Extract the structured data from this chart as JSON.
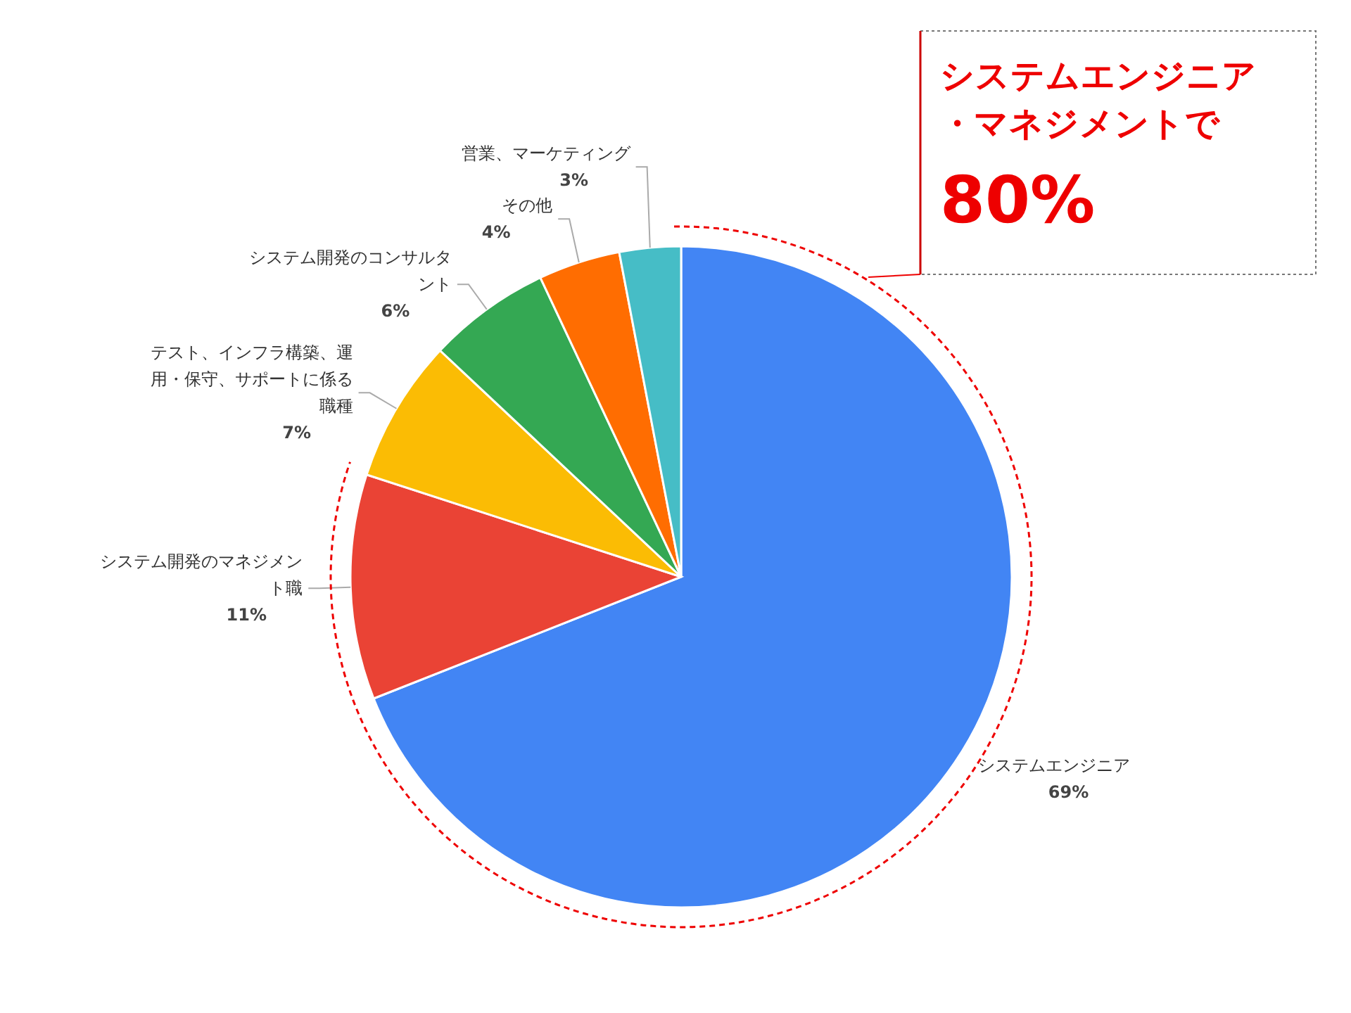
{
  "chart_data": {
    "type": "pie",
    "categories": [
      "システムエンジニア",
      "システム開発のマネジメント職",
      "テスト、インフラ構築、運用・保守、サポートに係る職種",
      "システム開発のコンサルタント",
      "その他",
      "営業、マーケティング"
    ],
    "values": [
      69,
      11,
      7,
      6,
      4,
      3
    ],
    "value_labels": [
      "69%",
      "11%",
      "7%",
      "6%",
      "4%",
      "3%"
    ],
    "colors": [
      "#4285f4",
      "#ea4335",
      "#fbbc04",
      "#34a853",
      "#ff6d01",
      "#46bdc6"
    ],
    "annotations": [
      "システムエンジニア・マネジメントで",
      "80%"
    ]
  }
}
